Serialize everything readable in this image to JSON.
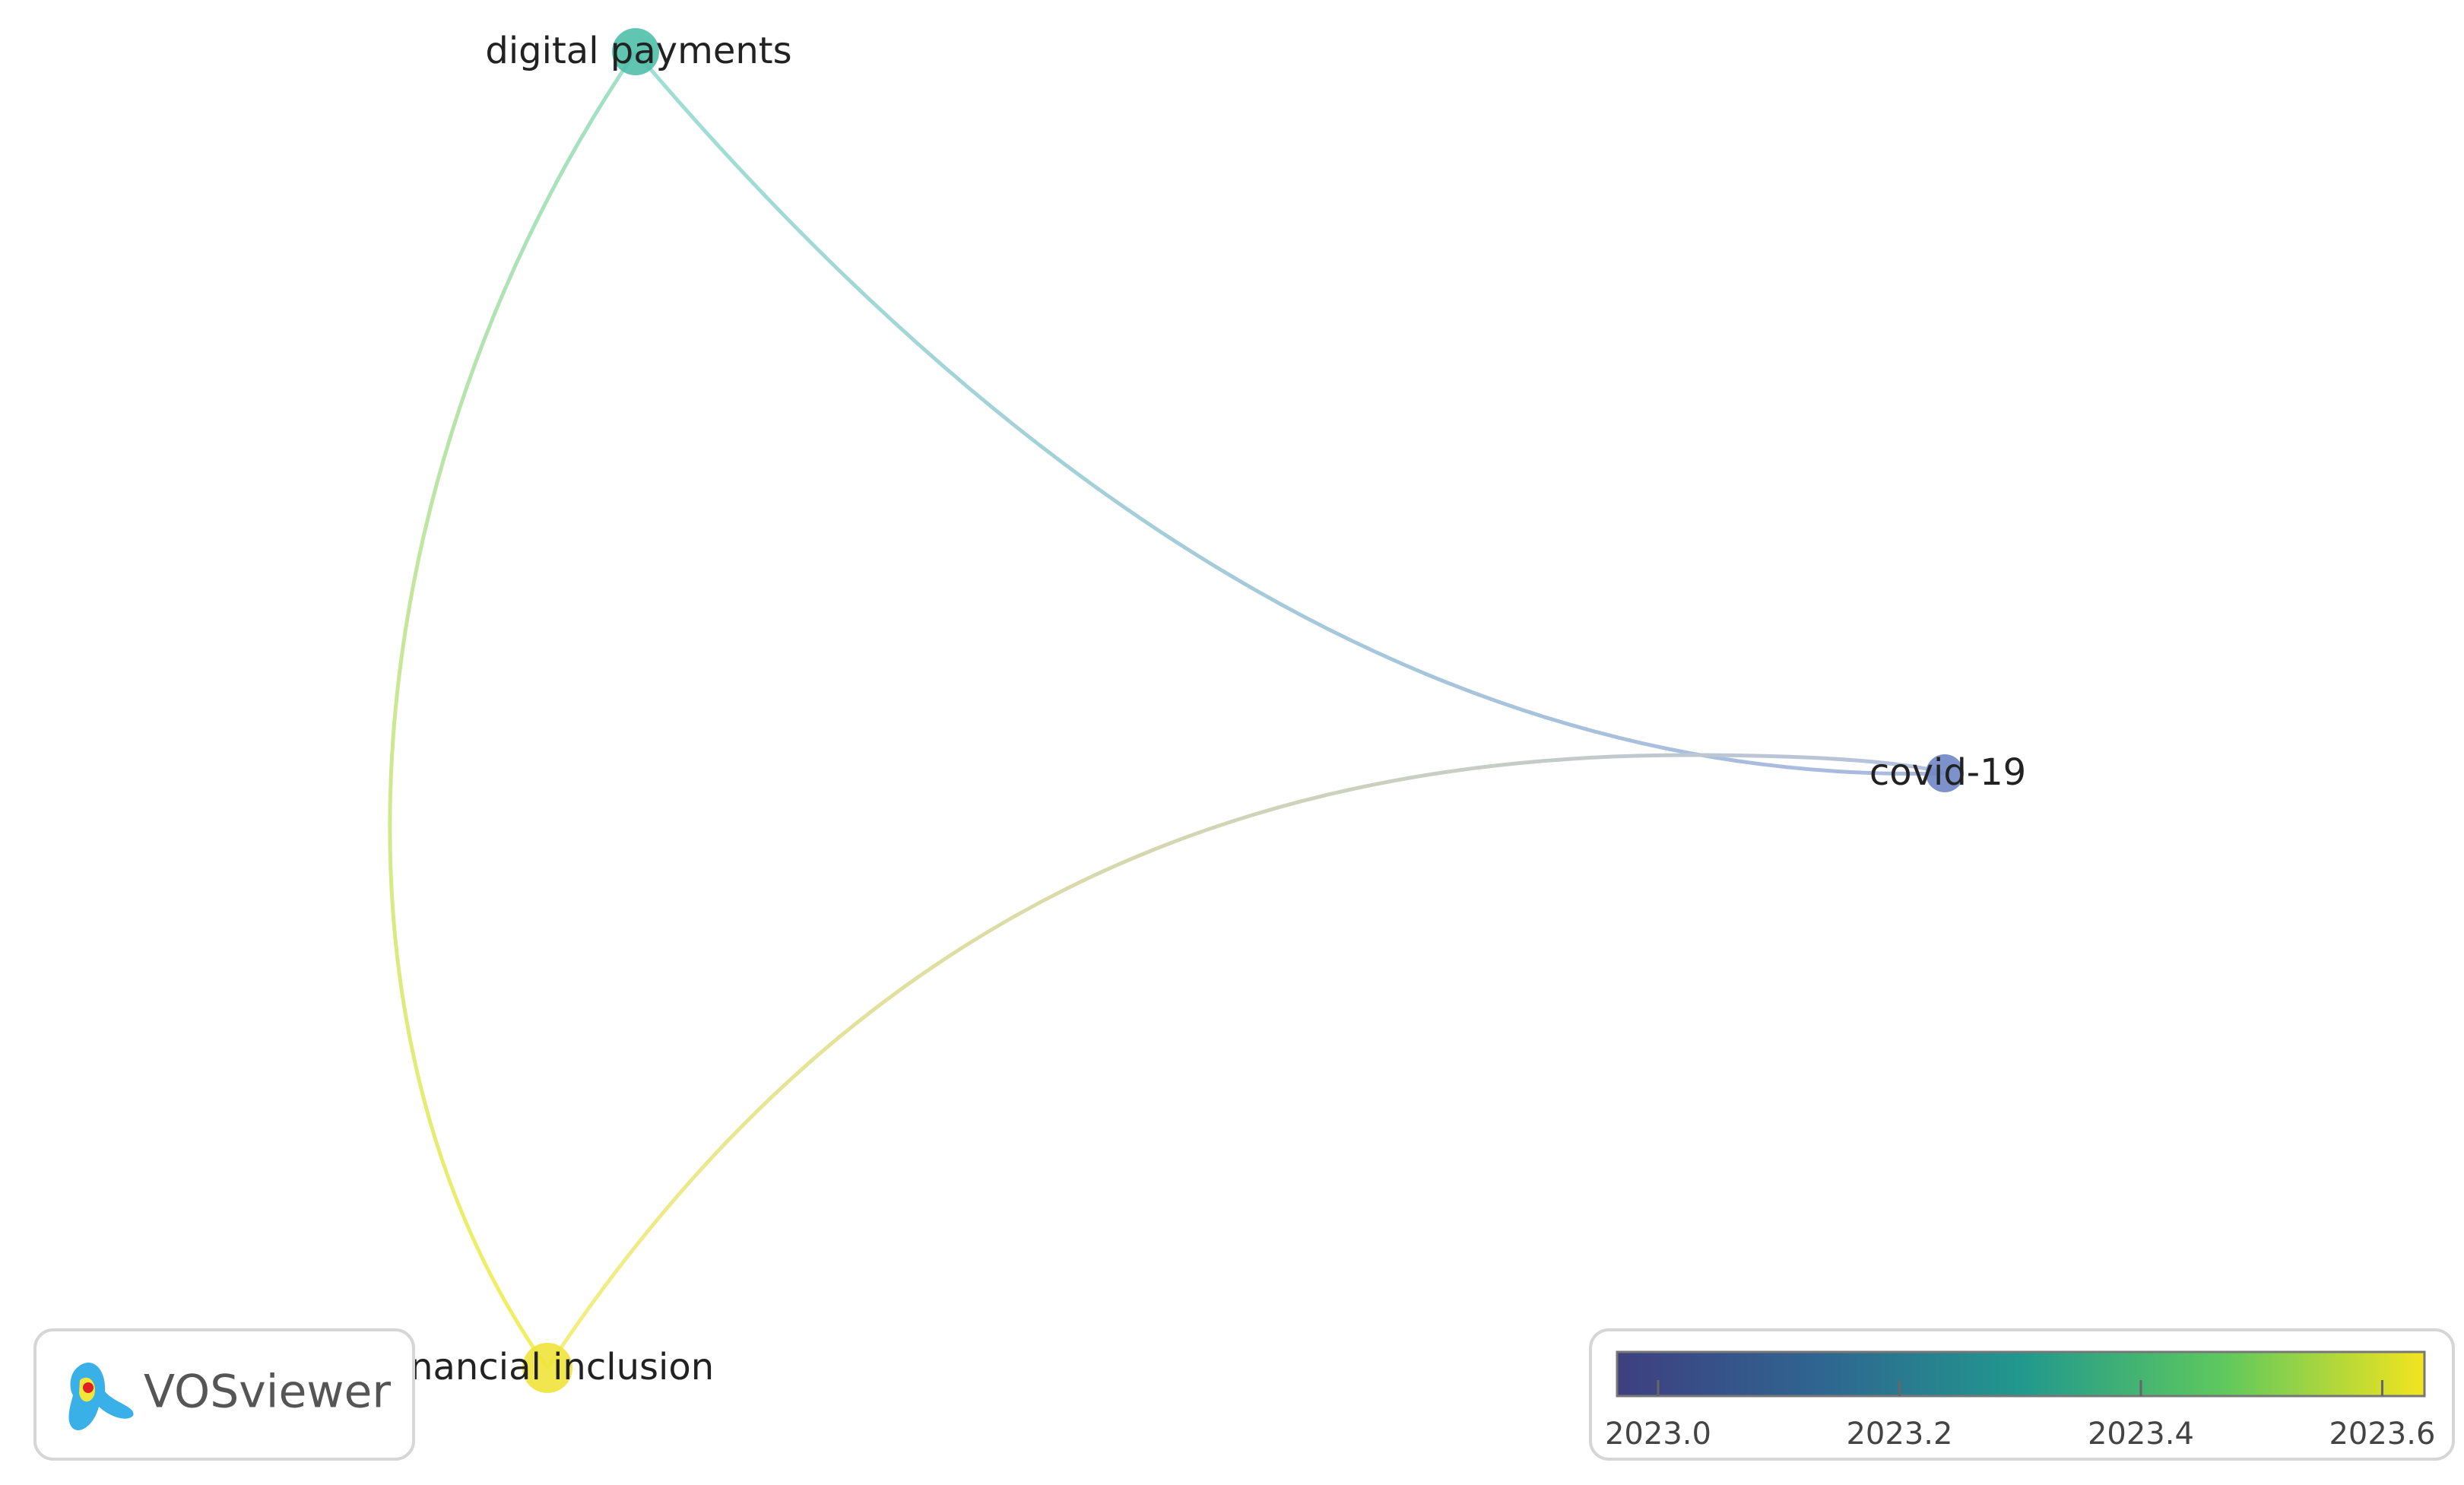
{
  "nodes": [
    {
      "label": "digital payments",
      "color": "#4fbfa9"
    },
    {
      "label": "covid-19",
      "color": "#6f86c4"
    },
    {
      "label": "financial inclusion",
      "color": "#f0e33a"
    }
  ],
  "logo": {
    "text": "VOSviewer"
  },
  "colorbar": {
    "lim": [
      2022.966,
      2023.635
    ],
    "ticks": [
      {
        "value": 2023.0,
        "label": "2023.0"
      },
      {
        "value": 2023.2,
        "label": "2023.2"
      },
      {
        "value": 2023.4,
        "label": "2023.4"
      },
      {
        "value": 2023.6,
        "label": "2023.6"
      }
    ]
  }
}
